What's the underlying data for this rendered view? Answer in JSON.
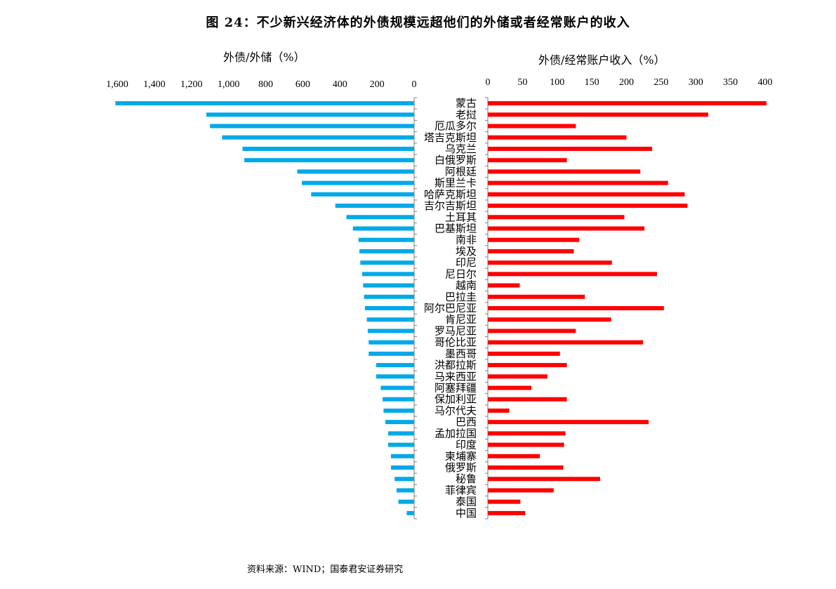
{
  "title": "图 24：不少新兴经济体的外债规模远超他们的外储或者经常账户的收入",
  "source": "资料来源：WIND；国泰君安证券研究",
  "colors": {
    "left": "#00A9E8",
    "right": "#FF0000",
    "axis": "#7F7F7F"
  },
  "chart_data": [
    {
      "type": "bar",
      "orientation": "horizontal",
      "direction": "right-to-left",
      "title": "外债/外储（%）",
      "xlabel": "外债/外储（%）",
      "xlim": [
        0,
        1600
      ],
      "ticks": [
        1600,
        1400,
        1200,
        1000,
        800,
        600,
        400,
        200,
        0
      ],
      "tick_labels": [
        "1,600",
        "1,400",
        "1,200",
        "1,000",
        "800",
        "600",
        "400",
        "200",
        "0"
      ],
      "categories": [
        "蒙古",
        "老挝",
        "厄瓜多尔",
        "塔吉克斯坦",
        "乌克兰",
        "白俄罗斯",
        "阿根廷",
        "斯里兰卡",
        "哈萨克斯坦",
        "吉尔吉斯坦",
        "土耳其",
        "巴基斯坦",
        "南非",
        "埃及",
        "印尼",
        "尼日尔",
        "越南",
        "巴拉圭",
        "阿尔巴尼亚",
        "肯尼亚",
        "罗马尼亚",
        "哥伦比亚",
        "墨西哥",
        "洪都拉斯",
        "马来西亚",
        "阿塞拜疆",
        "保加利亚",
        "马尔代夫",
        "巴西",
        "孟加拉国",
        "印度",
        "柬埔寨",
        "俄罗斯",
        "秘鲁",
        "菲律宾",
        "泰国",
        "中国"
      ],
      "values": [
        1610,
        1120,
        1100,
        1035,
        925,
        915,
        630,
        605,
        555,
        425,
        365,
        330,
        300,
        295,
        290,
        280,
        275,
        270,
        265,
        255,
        250,
        245,
        245,
        205,
        205,
        180,
        170,
        165,
        155,
        140,
        140,
        125,
        125,
        105,
        95,
        85,
        40
      ]
    },
    {
      "type": "bar",
      "orientation": "horizontal",
      "direction": "left-to-right",
      "title": "外债/经常账户收入（%）",
      "xlabel": "外债/经常账户收入（%）",
      "xlim": [
        0,
        400
      ],
      "ticks": [
        0,
        50,
        100,
        150,
        200,
        250,
        300,
        350,
        400
      ],
      "tick_labels": [
        "0",
        "50",
        "100",
        "150",
        "200",
        "250",
        "300",
        "350",
        "400"
      ],
      "categories": [
        "蒙古",
        "老挝",
        "厄瓜多尔",
        "塔吉克斯坦",
        "乌克兰",
        "白俄罗斯",
        "阿根廷",
        "斯里兰卡",
        "哈萨克斯坦",
        "吉尔吉斯坦",
        "土耳其",
        "巴基斯坦",
        "南非",
        "埃及",
        "印尼",
        "尼日尔",
        "越南",
        "巴拉圭",
        "阿尔巴尼亚",
        "肯尼亚",
        "罗马尼亚",
        "哥伦比亚",
        "墨西哥",
        "洪都拉斯",
        "马来西亚",
        "阿塞拜疆",
        "保加利亚",
        "马尔代夫",
        "巴西",
        "孟加拉国",
        "印度",
        "柬埔寨",
        "俄罗斯",
        "秘鲁",
        "菲律宾",
        "泰国",
        "中国"
      ],
      "values": [
        402,
        318,
        127,
        200,
        237,
        114,
        220,
        260,
        284,
        288,
        197,
        226,
        132,
        124,
        179,
        244,
        46,
        140,
        254,
        178,
        127,
        224,
        104,
        114,
        86,
        63,
        114,
        31,
        232,
        112,
        110,
        75,
        109,
        162,
        95,
        47,
        54
      ]
    }
  ]
}
